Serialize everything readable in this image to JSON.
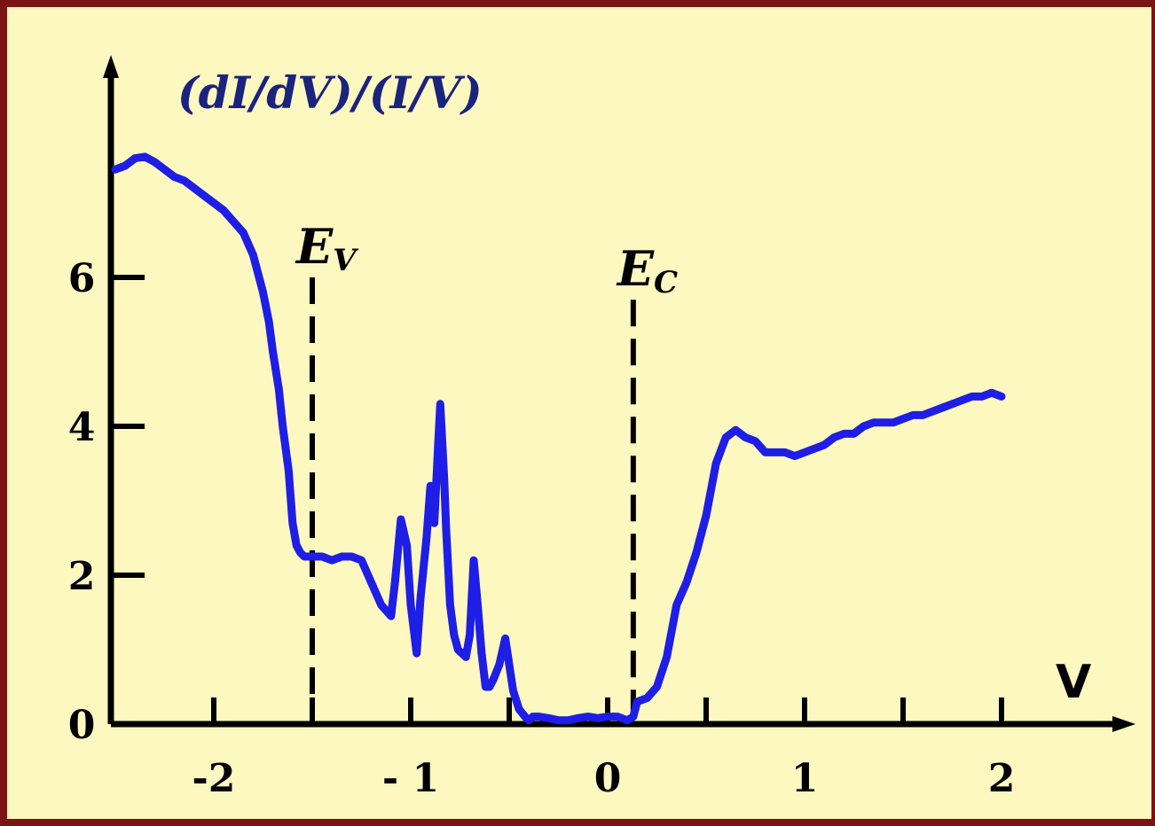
{
  "chart_data": {
    "type": "line",
    "title": "",
    "ylabel": "(dI/dV)/(I/V)",
    "xlabel": "V",
    "xlim": [
      -2.5,
      2.6
    ],
    "ylim": [
      0,
      8.6
    ],
    "grid": false,
    "x_ticks": [
      {
        "value": -2,
        "label": "-2"
      },
      {
        "value": -1,
        "label": "- 1"
      },
      {
        "value": 0,
        "label": "0"
      },
      {
        "value": 1,
        "label": "1"
      },
      {
        "value": 2,
        "label": "2"
      }
    ],
    "x_minor_ticks": [
      -1.5,
      -0.5,
      0.5,
      1.5
    ],
    "y_ticks": [
      {
        "value": 0,
        "label": "0"
      },
      {
        "value": 2,
        "label": "2"
      },
      {
        "value": 4,
        "label": "4"
      },
      {
        "value": 6,
        "label": "6"
      }
    ],
    "annotations": [
      {
        "main": "E",
        "sub": "V",
        "x": -1.5,
        "y_top": 6.0
      },
      {
        "main": "E",
        "sub": "C",
        "x": 0.13,
        "y_top": 5.7
      }
    ],
    "series": [
      {
        "color": "#1e1ee6",
        "x": [
          -2.5,
          -2.45,
          -2.4,
          -2.35,
          -2.3,
          -2.25,
          -2.2,
          -2.15,
          -2.1,
          -2.05,
          -2.0,
          -1.95,
          -1.9,
          -1.85,
          -1.8,
          -1.75,
          -1.72,
          -1.7,
          -1.67,
          -1.65,
          -1.62,
          -1.6,
          -1.58,
          -1.56,
          -1.54,
          -1.52,
          -1.5,
          -1.45,
          -1.4,
          -1.35,
          -1.3,
          -1.25,
          -1.2,
          -1.15,
          -1.1,
          -1.08,
          -1.05,
          -1.02,
          -1.0,
          -0.97,
          -0.95,
          -0.92,
          -0.9,
          -0.88,
          -0.86,
          -0.85,
          -0.83,
          -0.82,
          -0.8,
          -0.78,
          -0.76,
          -0.72,
          -0.7,
          -0.68,
          -0.66,
          -0.64,
          -0.62,
          -0.6,
          -0.58,
          -0.55,
          -0.52,
          -0.5,
          -0.48,
          -0.45,
          -0.42,
          -0.4,
          -0.38,
          -0.35,
          -0.3,
          -0.25,
          -0.2,
          -0.15,
          -0.1,
          -0.05,
          0.0,
          0.05,
          0.1,
          0.13,
          0.15,
          0.2,
          0.25,
          0.3,
          0.35,
          0.4,
          0.45,
          0.5,
          0.55,
          0.6,
          0.65,
          0.7,
          0.75,
          0.8,
          0.85,
          0.9,
          0.95,
          1.0,
          1.05,
          1.1,
          1.15,
          1.2,
          1.25,
          1.3,
          1.35,
          1.4,
          1.45,
          1.5,
          1.55,
          1.6,
          1.65,
          1.7,
          1.75,
          1.8,
          1.85,
          1.9,
          1.95,
          2.0
        ],
        "y": [
          7.45,
          7.5,
          7.6,
          7.62,
          7.55,
          7.45,
          7.35,
          7.3,
          7.2,
          7.1,
          7.0,
          6.9,
          6.75,
          6.6,
          6.3,
          5.8,
          5.4,
          5.0,
          4.5,
          4.0,
          3.4,
          2.7,
          2.4,
          2.3,
          2.25,
          2.25,
          2.25,
          2.25,
          2.2,
          2.25,
          2.25,
          2.2,
          1.9,
          1.6,
          1.45,
          1.9,
          2.75,
          2.4,
          1.6,
          0.95,
          1.7,
          2.5,
          3.2,
          2.7,
          3.8,
          4.3,
          3.3,
          2.6,
          1.6,
          1.2,
          1.0,
          0.9,
          1.2,
          2.2,
          1.6,
          0.95,
          0.5,
          0.5,
          0.6,
          0.8,
          1.15,
          0.8,
          0.45,
          0.2,
          0.1,
          0.05,
          0.1,
          0.1,
          0.08,
          0.05,
          0.05,
          0.08,
          0.1,
          0.08,
          0.1,
          0.1,
          0.05,
          0.1,
          0.3,
          0.35,
          0.5,
          0.9,
          1.6,
          1.9,
          2.3,
          2.8,
          3.5,
          3.85,
          3.95,
          3.85,
          3.8,
          3.65,
          3.65,
          3.65,
          3.6,
          3.65,
          3.7,
          3.75,
          3.85,
          3.9,
          3.9,
          4.0,
          4.05,
          4.05,
          4.05,
          4.1,
          4.15,
          4.15,
          4.2,
          4.25,
          4.3,
          4.35,
          4.4,
          4.4,
          4.45,
          4.4
        ]
      }
    ]
  }
}
